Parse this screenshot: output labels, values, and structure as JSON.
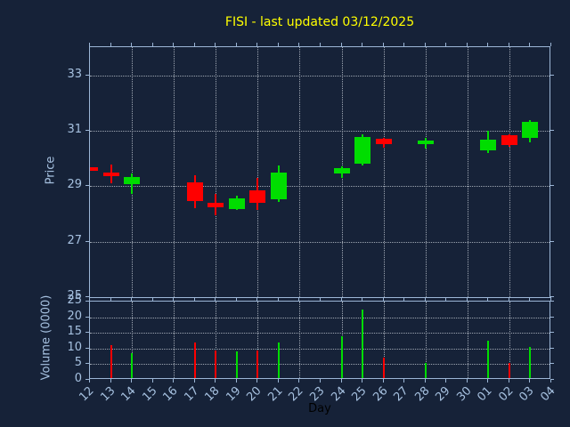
{
  "ticker": "FISI",
  "last_updated": "03/12/2025",
  "colors": {
    "background": "#162238",
    "axis": "#9cb6d6",
    "tick_label": "#a6c1e0",
    "grid": "#c2c9d2",
    "title": "#ffff00",
    "up": "#00dd00",
    "down": "#ff0000",
    "day_label": "#000000"
  },
  "chart_data": [
    {
      "type": "candlestick",
      "title": "FISI - last updated 03/12/2025",
      "xlabel": "Day",
      "ylabel": "Price",
      "x_categories": [
        "12",
        "13",
        "14",
        "15",
        "16",
        "17",
        "18",
        "19",
        "20",
        "21",
        "22",
        "23",
        "24",
        "25",
        "26",
        "27",
        "28",
        "29",
        "30",
        "01",
        "02",
        "03",
        "04"
      ],
      "ylim": [
        24.93,
        34.02
      ],
      "yticks": [
        25,
        27,
        29,
        31,
        33
      ],
      "grid": true,
      "candles": [
        {
          "day": "12",
          "open": 29.69,
          "high": 29.69,
          "low": 29.55,
          "close": 29.55
        },
        {
          "day": "13",
          "open": 29.5,
          "high": 29.78,
          "low": 29.1,
          "close": 29.37
        },
        {
          "day": "14",
          "open": 29.07,
          "high": 29.45,
          "low": 28.73,
          "close": 29.32
        },
        {
          "day": "17",
          "open": 29.14,
          "high": 29.4,
          "low": 28.19,
          "close": 28.46
        },
        {
          "day": "18",
          "open": 28.41,
          "high": 28.71,
          "low": 27.95,
          "close": 28.25
        },
        {
          "day": "19",
          "open": 28.19,
          "high": 28.65,
          "low": 28.15,
          "close": 28.57
        },
        {
          "day": "20",
          "open": 28.84,
          "high": 29.3,
          "low": 28.14,
          "close": 28.41
        },
        {
          "day": "21",
          "open": 28.52,
          "high": 29.75,
          "low": 28.43,
          "close": 29.48
        },
        {
          "day": "24",
          "open": 29.45,
          "high": 29.72,
          "low": 29.29,
          "close": 29.66
        },
        {
          "day": "25",
          "open": 29.82,
          "high": 30.88,
          "low": 29.75,
          "close": 30.78
        },
        {
          "day": "26",
          "open": 30.7,
          "high": 30.75,
          "low": 30.4,
          "close": 30.52
        },
        {
          "day": "28",
          "open": 30.52,
          "high": 30.73,
          "low": 30.35,
          "close": 30.66
        },
        {
          "day": "01",
          "open": 30.3,
          "high": 31.0,
          "low": 30.2,
          "close": 30.68
        },
        {
          "day": "02",
          "open": 30.84,
          "high": 30.88,
          "low": 30.41,
          "close": 30.48
        },
        {
          "day": "03",
          "open": 30.73,
          "high": 31.38,
          "low": 30.57,
          "close": 31.33
        }
      ]
    },
    {
      "type": "bar",
      "ylabel": "Volume (0000)",
      "ylim": [
        0,
        25
      ],
      "yticks": [
        0,
        5,
        10,
        15,
        20,
        25
      ],
      "grid": true,
      "bars": [
        {
          "day": "13",
          "value": 11,
          "direction": "down"
        },
        {
          "day": "14",
          "value": 8.5,
          "direction": "up"
        },
        {
          "day": "17",
          "value": 12,
          "direction": "down"
        },
        {
          "day": "18",
          "value": 9.5,
          "direction": "down"
        },
        {
          "day": "19",
          "value": 9,
          "direction": "up"
        },
        {
          "day": "20",
          "value": 9.5,
          "direction": "down"
        },
        {
          "day": "21",
          "value": 12,
          "direction": "up"
        },
        {
          "day": "24",
          "value": 14,
          "direction": "up"
        },
        {
          "day": "25",
          "value": 22.5,
          "direction": "up"
        },
        {
          "day": "26",
          "value": 7,
          "direction": "down"
        },
        {
          "day": "28",
          "value": 5.5,
          "direction": "up"
        },
        {
          "day": "01",
          "value": 12.5,
          "direction": "up"
        },
        {
          "day": "02",
          "value": 5.5,
          "direction": "down"
        },
        {
          "day": "03",
          "value": 10.5,
          "direction": "up"
        }
      ]
    }
  ]
}
